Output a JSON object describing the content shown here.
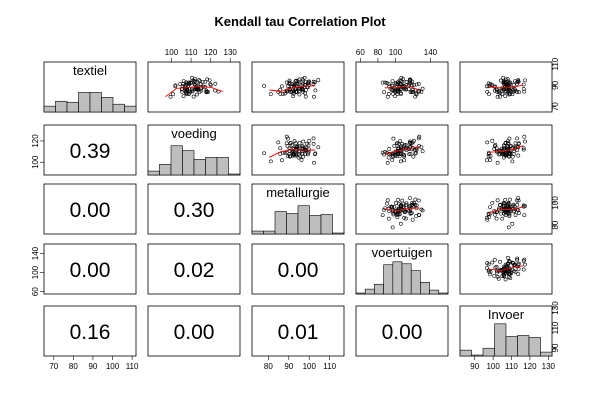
{
  "chart_data": {
    "type": "scatter",
    "title": "Kendall tau Correlation Plot",
    "variables": [
      "textiel",
      "voeding",
      "metallurgie",
      "voertuigen",
      "Invoer"
    ],
    "correlations": [
      {
        "row": 2,
        "col": 1,
        "value": "0.39"
      },
      {
        "row": 3,
        "col": 1,
        "value": "0.00"
      },
      {
        "row": 3,
        "col": 2,
        "value": "0.30"
      },
      {
        "row": 4,
        "col": 1,
        "value": "0.00"
      },
      {
        "row": 4,
        "col": 2,
        "value": "0.02"
      },
      {
        "row": 4,
        "col": 3,
        "value": "0.00"
      },
      {
        "row": 5,
        "col": 1,
        "value": "0.16"
      },
      {
        "row": 5,
        "col": 2,
        "value": "0.00"
      },
      {
        "row": 5,
        "col": 3,
        "value": "0.01"
      },
      {
        "row": 5,
        "col": 4,
        "value": "0.00"
      }
    ],
    "ranges": [
      [
        65,
        112
      ],
      [
        88,
        135
      ],
      [
        72,
        117
      ],
      [
        55,
        160
      ],
      [
        82,
        132
      ]
    ],
    "ticks": {
      "top": [
        {
          "col": 2,
          "values": [
            100,
            110,
            120,
            130
          ]
        },
        {
          "col": 4,
          "values": [
            60,
            80,
            100,
            140
          ]
        }
      ],
      "bottom": [
        {
          "col": 1,
          "values": [
            70,
            80,
            90,
            100,
            110
          ]
        },
        {
          "col": 3,
          "values": [
            80,
            90,
            100,
            110
          ]
        },
        {
          "col": 5,
          "values": [
            90,
            100,
            110,
            120,
            130
          ]
        }
      ],
      "left": [
        {
          "row": 2,
          "values": [
            100,
            120
          ]
        },
        {
          "row": 4,
          "values": [
            60,
            100,
            140
          ]
        }
      ],
      "right": [
        {
          "row": 1,
          "values": [
            70,
            90,
            110
          ]
        },
        {
          "row": 3,
          "values": [
            80,
            100
          ]
        },
        {
          "row": 5,
          "values": [
            90,
            110,
            130
          ]
        }
      ]
    },
    "histograms": [
      [
        0.6,
        1.1,
        1.0,
        2.0,
        2.0,
        1.5,
        0.8,
        0.6
      ],
      [
        0.4,
        1.1,
        3.0,
        2.5,
        1.6,
        1.8,
        1.8,
        0.1
      ],
      [
        0.3,
        0.3,
        2.3,
        2.1,
        2.9,
        1.9,
        2.0,
        0.1
      ],
      [
        0.1,
        0.5,
        1.0,
        3.0,
        3.3,
        3.1,
        2.4,
        1.2,
        0.4,
        0.1
      ],
      [
        0.6,
        0.1,
        0.8,
        3.3,
        2.0,
        2.1,
        1.9,
        0.4
      ]
    ],
    "colors": {
      "points": "#000000",
      "smooth": "#ff0000",
      "bars": "#bebebe"
    },
    "grid": false,
    "legend": "none"
  }
}
